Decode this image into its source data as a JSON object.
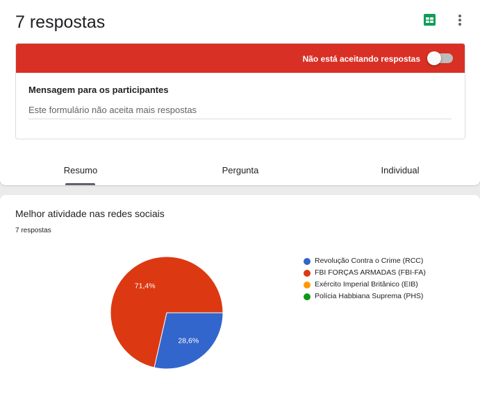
{
  "header": {
    "title": "7 respostas",
    "sheets_icon": "google-sheets-icon",
    "more_icon": "more-vert-icon"
  },
  "banner": {
    "text": "Não está aceitando respostas",
    "color": "#d93025",
    "toggle_on": false
  },
  "message": {
    "label": "Mensagem para os participantes",
    "value": "Este formulário não aceita mais respostas"
  },
  "tabs": [
    {
      "label": "Resumo",
      "selected": true
    },
    {
      "label": "Pergunta",
      "selected": false
    },
    {
      "label": "Individual",
      "selected": false
    }
  ],
  "question": {
    "title": "Melhor atividade nas redes sociais",
    "count": "7 respostas"
  },
  "chart_data": {
    "type": "pie",
    "categories": [
      "Revolução Contra o Crime (RCC)",
      "FBI FORÇAS ARMADAS (FBI-FA)",
      "Exército Imperial Britânico (EIB)",
      "Polícia Habbiana Suprema (PHS)"
    ],
    "values": [
      2,
      5,
      0,
      0
    ],
    "labels": [
      "28,6%",
      "71,4%",
      "",
      ""
    ],
    "colors": [
      "#3366cc",
      "#dc3912",
      "#ff9900",
      "#109618"
    ],
    "legend_position": "right"
  }
}
